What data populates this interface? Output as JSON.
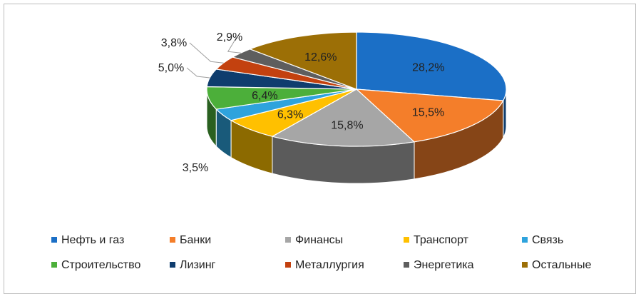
{
  "chart_data": {
    "type": "pie",
    "variant": "3d",
    "title": "",
    "legend_position": "bottom",
    "slices": [
      {
        "label": "Нефть и газ",
        "value": 28.2,
        "value_label": "28,2%",
        "color": "#1b6fc6"
      },
      {
        "label": "Банки",
        "value": 15.5,
        "value_label": "15,5%",
        "color": "#f47e2a"
      },
      {
        "label": "Финансы",
        "value": 15.8,
        "value_label": "15,8%",
        "color": "#a6a6a6"
      },
      {
        "label": "Транспорт",
        "value": 6.3,
        "value_label": "6,3%",
        "color": "#ffc000"
      },
      {
        "label": "Связь",
        "value": 3.5,
        "value_label": "3,5%",
        "color": "#2ea3dd"
      },
      {
        "label": "Строительство",
        "value": 6.4,
        "value_label": "6,4%",
        "color": "#4caf3a"
      },
      {
        "label": "Лизинг",
        "value": 5.0,
        "value_label": "5,0%",
        "color": "#0f3d6e"
      },
      {
        "label": "Металлургия",
        "value": 3.8,
        "value_label": "3,8%",
        "color": "#c3410f"
      },
      {
        "label": "Энергетика",
        "value": 2.9,
        "value_label": "2,9%",
        "color": "#5e5e5e"
      },
      {
        "label": "Остальные",
        "value": 12.6,
        "value_label": "12,6%",
        "color": "#9c6f06"
      }
    ]
  }
}
